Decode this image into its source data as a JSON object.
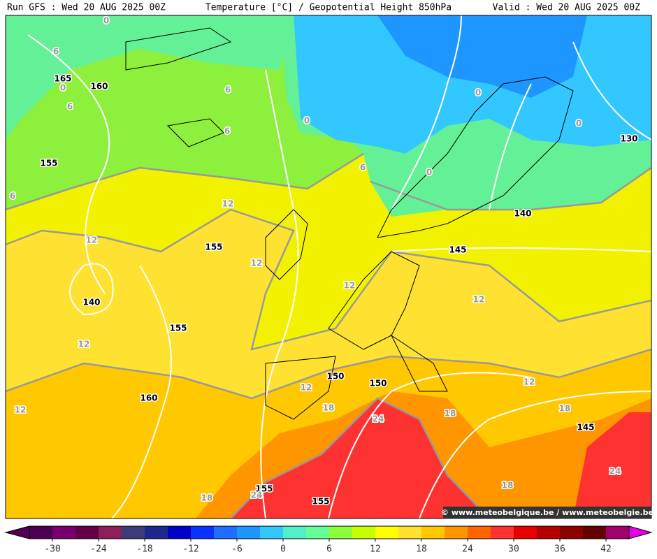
{
  "header": {
    "run": "Run GFS : Wed 20 AUG 2025 00Z",
    "title": "Temperature [°C] / Geopotential Height 850hPa",
    "valid": "Valid : Wed 20 AUG 2025 00Z"
  },
  "credit": "© www.meteobelgique.be / www.meteobelgie.be",
  "height_labels": [
    165,
    160,
    155,
    155,
    140,
    155,
    160,
    150,
    150,
    155,
    155,
    145,
    140,
    130,
    145
  ],
  "temperature_labels": [
    0,
    6,
    0,
    6,
    6,
    6,
    0,
    0,
    0,
    0,
    6,
    6,
    12,
    12,
    12,
    12,
    12,
    12,
    12,
    12,
    12,
    18,
    18,
    18,
    18,
    18,
    24,
    24,
    24
  ],
  "colorbar": {
    "range": [
      -33,
      45
    ],
    "ticks": [
      -30,
      -24,
      -18,
      -12,
      -6,
      0,
      6,
      12,
      18,
      24,
      30,
      36,
      42
    ],
    "colors": [
      "#4b0050",
      "#78006e",
      "#640046",
      "#8c1e5a",
      "#3c3c78",
      "#1e288c",
      "#0000c8",
      "#0a32ff",
      "#1e6eff",
      "#1e96ff",
      "#32c8ff",
      "#50f0c8",
      "#64ff96",
      "#8cff3c",
      "#c8ff00",
      "#ffff00",
      "#ffe132",
      "#ffc800",
      "#ff9600",
      "#ff6400",
      "#ff3232",
      "#e60000",
      "#b40000",
      "#8c0000",
      "#640000",
      "#a0006e"
    ],
    "low_color": "#500050",
    "high_color": "#e600e6"
  }
}
